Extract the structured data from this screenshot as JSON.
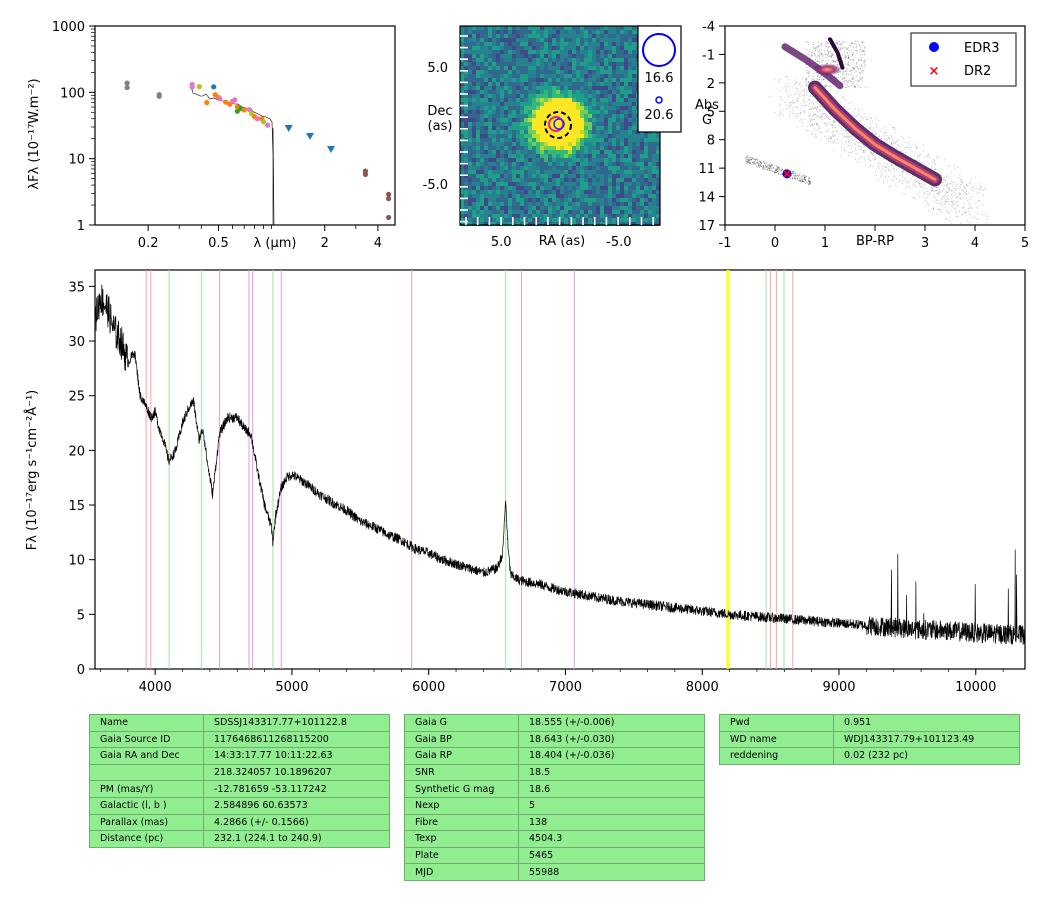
{
  "chart_data": [
    {
      "type": "scatter",
      "name": "SED",
      "ylabel": "λFλ (10⁻¹⁷W.m⁻²)",
      "xlabel": "λ (μm)",
      "xscale": "log",
      "yscale": "log",
      "xlim": [
        0.1,
        5
      ],
      "ylim": [
        1,
        1000
      ],
      "xticks": [
        "0.2",
        "0.5",
        "2",
        "4"
      ],
      "yticks": [
        "1",
        "10",
        "100",
        "1000"
      ],
      "points": [
        {
          "x": 0.152,
          "y": 138,
          "c": "#7f7f7f"
        },
        {
          "x": 0.152,
          "y": 118,
          "c": "#7f7f7f"
        },
        {
          "x": 0.231,
          "y": 92,
          "c": "#7f7f7f"
        },
        {
          "x": 0.231,
          "y": 87,
          "c": "#7f7f7f"
        },
        {
          "x": 0.355,
          "y": 132,
          "c": "#e377c2"
        },
        {
          "x": 0.355,
          "y": 120,
          "c": "#e377c2"
        },
        {
          "x": 0.39,
          "y": 122,
          "c": "#bcbd22"
        },
        {
          "x": 0.43,
          "y": 70,
          "c": "#ff7f0e"
        },
        {
          "x": 0.47,
          "y": 121,
          "c": "#1f77b4"
        },
        {
          "x": 0.48,
          "y": 92,
          "c": "#ff7f0e"
        },
        {
          "x": 0.5,
          "y": 84,
          "c": "#ff7f0e"
        },
        {
          "x": 0.51,
          "y": 80,
          "c": "#e377c2"
        },
        {
          "x": 0.55,
          "y": 71,
          "c": "#ff7f0e"
        },
        {
          "x": 0.58,
          "y": 66,
          "c": "#ff7f0e"
        },
        {
          "x": 0.6,
          "y": 73,
          "c": "#e377c2"
        },
        {
          "x": 0.62,
          "y": 77,
          "c": "#e377c2"
        },
        {
          "x": 0.64,
          "y": 52,
          "c": "#2ca02c"
        },
        {
          "x": 0.64,
          "y": 60,
          "c": "#ff7f0e"
        },
        {
          "x": 0.67,
          "y": 57,
          "c": "#2ca02c"
        },
        {
          "x": 0.7,
          "y": 54,
          "c": "#ff7f0e"
        },
        {
          "x": 0.75,
          "y": 55,
          "c": "#e377c2"
        },
        {
          "x": 0.77,
          "y": 48,
          "c": "#bcbd22"
        },
        {
          "x": 0.8,
          "y": 43,
          "c": "#ff7f0e"
        },
        {
          "x": 0.83,
          "y": 40,
          "c": "#e377c2"
        },
        {
          "x": 0.88,
          "y": 40,
          "c": "#ff7f0e"
        },
        {
          "x": 0.9,
          "y": 36,
          "c": "#bcbd22"
        },
        {
          "x": 0.95,
          "y": 32,
          "c": "#e377c2"
        },
        {
          "x": 1.25,
          "y": 29,
          "c": "#1f77b4",
          "m": "v"
        },
        {
          "x": 1.65,
          "y": 22,
          "c": "#1f77b4",
          "m": "v"
        },
        {
          "x": 2.17,
          "y": 14,
          "c": "#1f77b4",
          "m": "v"
        },
        {
          "x": 3.4,
          "y": 6.5,
          "c": "#8c564b"
        },
        {
          "x": 3.4,
          "y": 5.8,
          "c": "#8c564b"
        },
        {
          "x": 4.6,
          "y": 2.9,
          "c": "#8c564b"
        },
        {
          "x": 4.6,
          "y": 2.5,
          "c": "#8c564b"
        },
        {
          "x": 4.6,
          "y": 1.3,
          "c": "#8c564b"
        }
      ]
    },
    {
      "type": "heatmap",
      "name": "Image",
      "xlabel": "RA (as)",
      "ylabel": "Dec\n(as)",
      "xlim": [
        8.5,
        -8.5
      ],
      "ylim": [
        -8.5,
        8.5
      ],
      "xticks": [
        "5.0",
        "-5.0"
      ],
      "yticks": [
        "5.0",
        "-5.0"
      ],
      "legend": [
        "16.6",
        "20.6"
      ]
    },
    {
      "type": "scatter",
      "name": "HRD",
      "xlabel": "BP-RP",
      "ylabel": "Abs\nG",
      "xlim": [
        -1,
        5
      ],
      "ylim": [
        17,
        -4
      ],
      "xticks": [
        "-1",
        "0",
        "1",
        "3",
        "4",
        "5"
      ],
      "yticks": [
        "-4",
        "-1",
        "2",
        "5",
        "8",
        "11",
        "14",
        "17"
      ],
      "series": [
        {
          "name": "EDR3",
          "x": [
            0.24
          ],
          "y": [
            11.6
          ],
          "color": "#0000ff"
        },
        {
          "name": "DR2",
          "x": [
            0.24
          ],
          "y": [
            11.6
          ],
          "color": "#ff0000"
        }
      ],
      "legend_position": "top-right"
    },
    {
      "type": "line",
      "name": "Spectrum",
      "xlabel": "",
      "ylabel": "Fλ (10⁻¹⁷erg s⁻¹cm⁻²Å⁻¹)",
      "xlim": [
        3560,
        10360
      ],
      "ylim": [
        0,
        36.5
      ],
      "xticks": [
        "4000",
        "5000",
        "6000",
        "7000",
        "8000",
        "9000",
        "10000"
      ],
      "yticks": [
        "0",
        "5",
        "10",
        "15",
        "20",
        "25",
        "30",
        "35"
      ],
      "x": [
        3560,
        3600,
        3650,
        3700,
        3750,
        3800,
        3850,
        3890,
        3935,
        3970,
        4000,
        4030,
        4060,
        4100,
        4150,
        4200,
        4250,
        4280,
        4320,
        4350,
        4380,
        4420,
        4470,
        4530,
        4600,
        4650,
        4700,
        4750,
        4800,
        4850,
        4861,
        4880,
        4920,
        4960,
        5000,
        5100,
        5200,
        5300,
        5400,
        5500,
        5600,
        5700,
        5800,
        5900,
        6000,
        6100,
        6200,
        6300,
        6400,
        6500,
        6540,
        6563,
        6580,
        6600,
        6650,
        6700,
        6800,
        6900,
        7000,
        7200,
        7400,
        7600,
        7800,
        8000,
        8200,
        8400,
        8600,
        8800,
        9000,
        9200,
        9400,
        9600,
        9800,
        10000,
        10200,
        10360
      ],
      "y": [
        32,
        34,
        33,
        31,
        30,
        28,
        29,
        25,
        24,
        23,
        23.5,
        22,
        21,
        19,
        20,
        22.5,
        24,
        24.5,
        21,
        22,
        19,
        16,
        21.5,
        23,
        23,
        22,
        21.5,
        18,
        15,
        13,
        11.5,
        14,
        16.5,
        17.5,
        17.8,
        17,
        16,
        15.2,
        14.5,
        13.5,
        13,
        12.3,
        11.8,
        11,
        10.6,
        10,
        9.6,
        9.2,
        8.8,
        9.2,
        10.5,
        15.5,
        11,
        8.6,
        8.2,
        8,
        7.8,
        7.4,
        7.1,
        6.6,
        6.2,
        5.9,
        5.6,
        5.3,
        5,
        4.8,
        4.6,
        4.4,
        4.2,
        4,
        3.8,
        3.6,
        3.5,
        3.3,
        3.2,
        3.1
      ],
      "lines": [
        {
          "x": 3934,
          "color": "#f4a6a6"
        },
        {
          "x": 3968,
          "color": "#f4a6a6"
        },
        {
          "x": 4102,
          "color": "#9ee89e"
        },
        {
          "x": 4340,
          "color": "#9ee89e"
        },
        {
          "x": 4471,
          "color": "#e09ee0"
        },
        {
          "x": 4686,
          "color": "#e09ee0"
        },
        {
          "x": 4713,
          "color": "#e09ee0"
        },
        {
          "x": 4861,
          "color": "#9ee89e"
        },
        {
          "x": 4922,
          "color": "#e09ee0"
        },
        {
          "x": 5876,
          "color": "#e09ee0"
        },
        {
          "x": 6563,
          "color": "#9ee89e"
        },
        {
          "x": 6678,
          "color": "#e09ee0"
        },
        {
          "x": 7065,
          "color": "#e09ee0"
        },
        {
          "x": 8183,
          "color": "#ffff00"
        },
        {
          "x": 8195,
          "color": "#ffff00"
        },
        {
          "x": 8467,
          "color": "#9ee89e"
        },
        {
          "x": 8498,
          "color": "#f4a6a6"
        },
        {
          "x": 8542,
          "color": "#f4a6a6"
        },
        {
          "x": 8598,
          "color": "#9ee89e"
        },
        {
          "x": 8662,
          "color": "#f4a6a6"
        }
      ]
    }
  ],
  "tables": [
    [
      [
        "Name",
        "SDSSJ143317.77+101122.8"
      ],
      [
        "Gaia Source ID",
        "1176468611268115200"
      ],
      [
        "Gaia RA and Dec",
        "14:33:17.77    10:11:22.63"
      ],
      [
        "",
        "218.324057    10.1896207"
      ],
      [
        "PM (mas/Y)",
        "-12.781659    -53.117242"
      ],
      [
        "Galactic (l, b )",
        "2.584896    60.63573"
      ],
      [
        "Parallax (mas)",
        "4.2866 (+/- 0.1566)"
      ],
      [
        "Distance (pc)",
        "232.1 (224.1 to 240.9)"
      ]
    ],
    [
      [
        "Gaia G",
        "18.555 (+/-0.006)"
      ],
      [
        "Gaia BP",
        "18.643 (+/-0.030)"
      ],
      [
        "Gaia RP",
        "18.404 (+/-0.036)"
      ],
      [
        "SNR",
        "18.5"
      ],
      [
        "Synthetic G mag",
        "18.6"
      ],
      [
        "Nexp",
        "5"
      ],
      [
        "Fibre",
        "138"
      ],
      [
        "Texp",
        "4504.3"
      ],
      [
        "Plate",
        "5465"
      ],
      [
        "MJD",
        "55988"
      ]
    ],
    [
      [
        "Pwd",
        "0.951"
      ],
      [
        "WD name",
        "WDJ143317.79+101123.49"
      ],
      [
        "reddening",
        "0.02 (232 pc)"
      ]
    ]
  ]
}
